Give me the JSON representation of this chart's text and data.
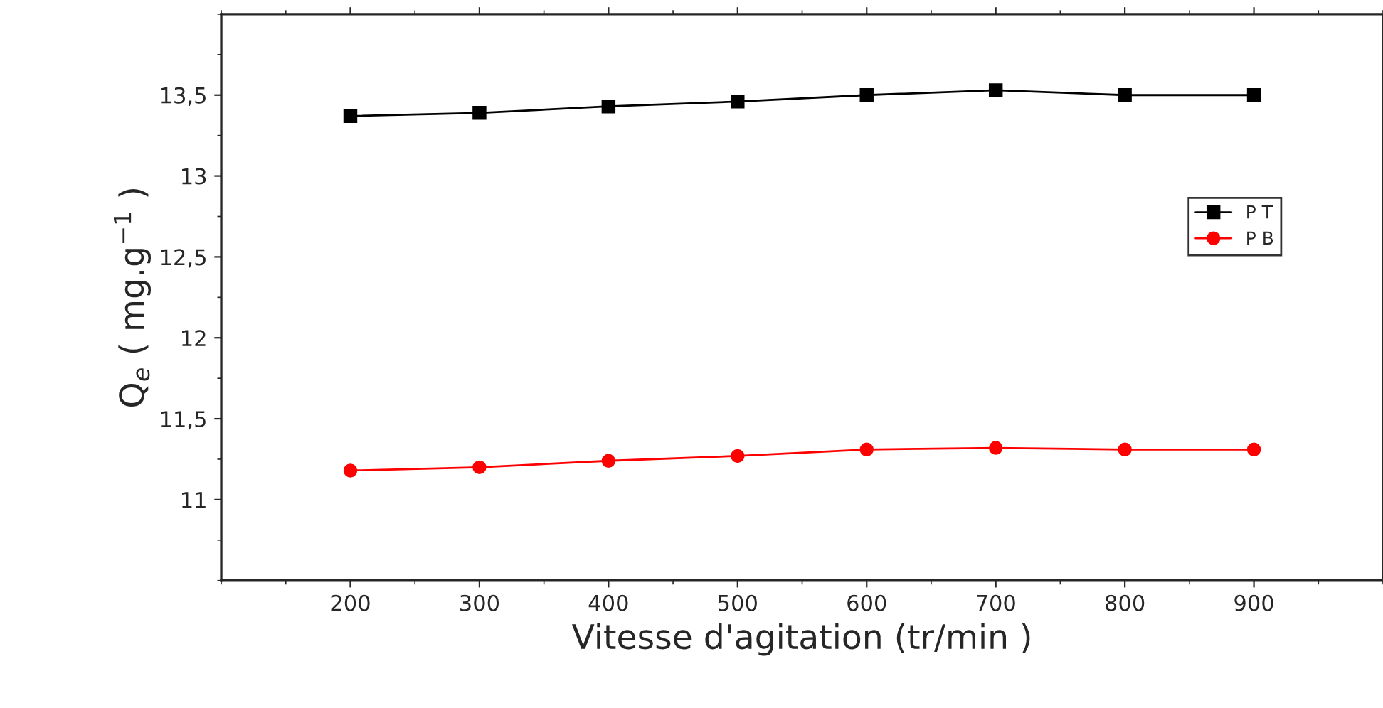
{
  "chart_data": {
    "type": "line",
    "xlabel": "Vitesse d'agitation (tr/min )",
    "ylabel": "Q$_{e}$ ( mg.g$^{−1}$ )",
    "x": [
      200,
      300,
      400,
      500,
      600,
      700,
      800,
      900
    ],
    "series": [
      {
        "name": "P T",
        "color": "#000000",
        "marker": "square",
        "values": [
          13.37,
          13.39,
          13.43,
          13.46,
          13.5,
          13.53,
          13.5,
          13.5
        ]
      },
      {
        "name": "P B",
        "color": "#ff0000",
        "marker": "circle",
        "values": [
          11.18,
          11.2,
          11.24,
          11.27,
          11.31,
          11.32,
          11.31,
          11.31
        ]
      }
    ],
    "xlim": [
      100,
      1000
    ],
    "xticks": [
      200,
      300,
      400,
      500,
      600,
      700,
      800,
      900
    ],
    "ylim": [
      10.5,
      14
    ],
    "yticks": [
      11,
      {
        "value": 11.5,
        "label": "11,5"
      },
      12,
      {
        "value": 12.5,
        "label": "12,5"
      },
      13,
      {
        "value": 13.5,
        "label": "13,5"
      }
    ],
    "grid": false,
    "legend": "right",
    "line_style": "solid"
  }
}
